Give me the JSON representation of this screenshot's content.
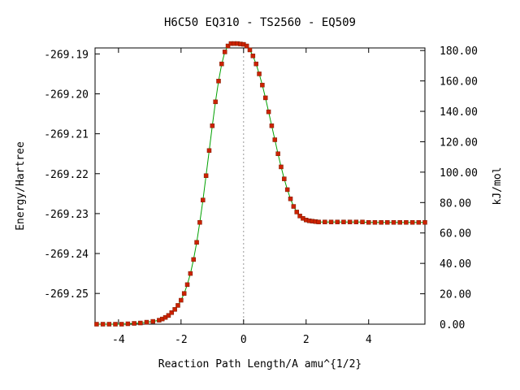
{
  "chart_data": {
    "type": "line",
    "title": "H6C50   EQ310 - TS2560 - EQ509",
    "xlabel": "Reaction Path Length/A amu^{1/2}",
    "ylabel": "Energy/Hartree",
    "y2label": "kJ/mol",
    "xlim": [
      -4.75,
      5.8
    ],
    "ylim": [
      -269.2577,
      -269.1885
    ],
    "y2lim": [
      0,
      181.7
    ],
    "x_ticks": [
      -4,
      -2,
      0,
      2,
      4
    ],
    "y_ticks": [
      -269.19,
      -269.2,
      -269.21,
      -269.22,
      -269.23,
      -269.24,
      -269.25
    ],
    "y_tick_labels": [
      "-269.19",
      "-269.20",
      "-269.21",
      "-269.22",
      "-269.23",
      "-269.24",
      "-269.25"
    ],
    "y2_ticks": [
      0,
      20,
      40,
      60,
      80,
      100,
      120,
      140,
      160,
      180
    ],
    "y2_tick_labels": [
      "0.00",
      "20.00",
      "40.00",
      "60.00",
      "80.00",
      "100.00",
      "120.00",
      "140.00",
      "160.00",
      "180.00"
    ],
    "ts_x": 0,
    "grid": false,
    "line_color": "#00a000",
    "marker_color": "#cc2200",
    "series": [
      {
        "x": [
          -4.7,
          -4.5,
          -4.3,
          -4.1,
          -3.9,
          -3.7,
          -3.5,
          -3.3,
          -3.1,
          -2.9,
          -2.7,
          -2.6,
          -2.5,
          -2.4,
          -2.3,
          -2.2,
          -2.1,
          -2.0,
          -1.9,
          -1.8,
          -1.7,
          -1.6,
          -1.5,
          -1.4,
          -1.3,
          -1.2,
          -1.1,
          -1.0,
          -0.9,
          -0.8,
          -0.7,
          -0.6,
          -0.5,
          -0.4,
          -0.3,
          -0.2,
          -0.1,
          0.0,
          0.1,
          0.2,
          0.3,
          0.4,
          0.5,
          0.6,
          0.7,
          0.8,
          0.9,
          1.0,
          1.1,
          1.2,
          1.3,
          1.4,
          1.5,
          1.6,
          1.7,
          1.8,
          1.9,
          2.0,
          2.1,
          2.2,
          2.3,
          2.4,
          2.6,
          2.8,
          3.0,
          3.2,
          3.4,
          3.6,
          3.8,
          4.0,
          4.2,
          4.4,
          4.6,
          4.8,
          5.0,
          5.2,
          5.4,
          5.6,
          5.8
        ],
        "y": [
          -269.2577,
          -269.2577,
          -269.2577,
          -269.2577,
          -269.2577,
          -269.2576,
          -269.2575,
          -269.2574,
          -269.2572,
          -269.257,
          -269.2567,
          -269.2564,
          -269.256,
          -269.2555,
          -269.2548,
          -269.254,
          -269.253,
          -269.2517,
          -269.25,
          -269.2478,
          -269.245,
          -269.2415,
          -269.2372,
          -269.2322,
          -269.2266,
          -269.2205,
          -269.2142,
          -269.208,
          -269.202,
          -269.1968,
          -269.1925,
          -269.1895,
          -269.188,
          -269.1874,
          -269.1874,
          -269.1874,
          -269.1875,
          -269.1876,
          -269.188,
          -269.189,
          -269.1905,
          -269.1925,
          -269.195,
          -269.1978,
          -269.201,
          -269.2045,
          -269.208,
          -269.2115,
          -269.215,
          -269.2183,
          -269.2213,
          -269.224,
          -269.2263,
          -269.2282,
          -269.2296,
          -269.2306,
          -269.2312,
          -269.2316,
          -269.2318,
          -269.2319,
          -269.232,
          -269.2321,
          -269.2321,
          -269.2321,
          -269.2321,
          -269.2321,
          -269.2321,
          -269.2321,
          -269.2321,
          -269.2322,
          -269.2322,
          -269.2322,
          -269.2322,
          -269.2322,
          -269.2322,
          -269.2322,
          -269.2322,
          -269.2322,
          -269.2322
        ]
      }
    ]
  }
}
